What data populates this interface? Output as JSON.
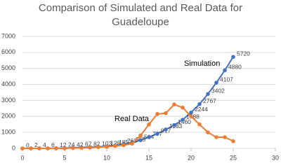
{
  "chart_data": {
    "type": "line",
    "title": "Comparison of Simulated and Real Data for Guadeloupe",
    "annotations": [
      "Simulation",
      "Real Data"
    ],
    "x": [
      0,
      1,
      2,
      3,
      4,
      5,
      6,
      7,
      8,
      9,
      10,
      11,
      12,
      13,
      14,
      15,
      16,
      17,
      18,
      19,
      20,
      21,
      22,
      23,
      24,
      25
    ],
    "series": [
      {
        "name": "Simulation",
        "color": "#4472c4",
        "data_labels": true,
        "values": [
          0,
          2,
          4,
          6,
          12,
          24,
          42,
          67,
          82,
          103,
          128,
          185,
          263,
          365,
          514,
          707,
          917,
          1183,
          1460,
          1788,
          2244,
          2767,
          3402,
          4107,
          4880,
          5720
        ]
      },
      {
        "name": "Real Data",
        "color": "#ed7d31",
        "data_labels": false,
        "values": [
          0,
          0,
          0,
          0,
          0,
          0,
          20,
          30,
          50,
          80,
          100,
          150,
          200,
          300,
          800,
          1500,
          2150,
          2200,
          2750,
          2550,
          2000,
          1500,
          1000,
          700,
          700,
          450
        ]
      }
    ],
    "xlim": [
      0,
      30
    ],
    "xticks": [
      0,
      5,
      10,
      15,
      20,
      25,
      30
    ],
    "ylim": [
      0,
      7000
    ],
    "yticks": [
      0,
      1000,
      2000,
      3000,
      4000,
      5000,
      6000,
      7000
    ],
    "grid": true
  }
}
